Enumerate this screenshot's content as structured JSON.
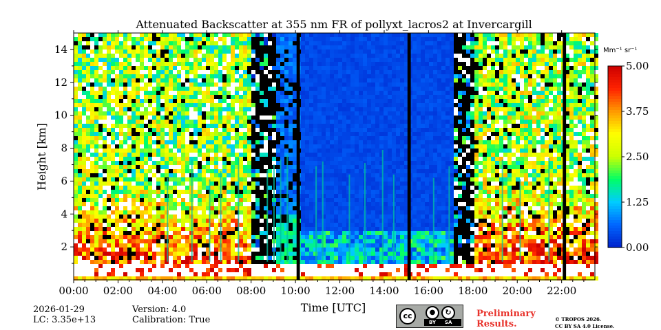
{
  "chart_data": {
    "type": "heatmap",
    "title": "Attenuated Backscatter at 355 nm FR of pollyxt_lacros2 at Invercargill",
    "xlabel": "Time [UTC]",
    "ylabel": "Height [km]",
    "xlim": [
      0,
      23.5
    ],
    "ylim": [
      0,
      15
    ],
    "x_ticks": [
      {
        "value": 0,
        "label": "00:00"
      },
      {
        "value": 2,
        "label": "02:00"
      },
      {
        "value": 4,
        "label": "04:00"
      },
      {
        "value": 6,
        "label": "06:00"
      },
      {
        "value": 8,
        "label": "08:00"
      },
      {
        "value": 10,
        "label": "10:00"
      },
      {
        "value": 12,
        "label": "12:00"
      },
      {
        "value": 14,
        "label": "14:00"
      },
      {
        "value": 16,
        "label": "16:00"
      },
      {
        "value": 18,
        "label": "18:00"
      },
      {
        "value": 20,
        "label": "20:00"
      },
      {
        "value": 22,
        "label": "22:00"
      }
    ],
    "y_ticks": [
      {
        "value": 2,
        "label": "2"
      },
      {
        "value": 4,
        "label": "4"
      },
      {
        "value": 6,
        "label": "6"
      },
      {
        "value": 8,
        "label": "8"
      },
      {
        "value": 10,
        "label": "10"
      },
      {
        "value": 12,
        "label": "12"
      },
      {
        "value": 14,
        "label": "14"
      }
    ],
    "colorbar": {
      "unit": "Mm⁻¹ sr⁻¹",
      "range": [
        0.0,
        5.0
      ],
      "ticks": [
        {
          "value": 0.0,
          "label": "0.00"
        },
        {
          "value": 1.25,
          "label": "1.25"
        },
        {
          "value": 2.5,
          "label": "2.50"
        },
        {
          "value": 3.75,
          "label": "3.75"
        },
        {
          "value": 5.0,
          "label": "5.00"
        }
      ],
      "colormap": [
        "#0022cc",
        "#0066ff",
        "#00ccff",
        "#00ff66",
        "#ccff00",
        "#ffff00",
        "#ff9900",
        "#ff2200",
        "#cc0000"
      ]
    },
    "regimes": [
      {
        "start": 0.0,
        "end": 8.0,
        "kind": "noisy",
        "level": 0.5
      },
      {
        "start": 8.0,
        "end": 9.0,
        "kind": "dark",
        "level": 0.3
      },
      {
        "start": 9.0,
        "end": 10.2,
        "kind": "blue_streaks",
        "level": 0.4
      },
      {
        "start": 10.2,
        "end": 15.2,
        "kind": "blue",
        "level": 0.35
      },
      {
        "start": 15.2,
        "end": 17.0,
        "kind": "blue",
        "level": 0.3
      },
      {
        "start": 17.0,
        "end": 18.0,
        "kind": "dark",
        "level": 0.3
      },
      {
        "start": 18.0,
        "end": 23.5,
        "kind": "noisy",
        "level": 0.55
      }
    ],
    "gaps": [
      {
        "start": 10.05,
        "end": 10.2
      },
      {
        "start": 15.05,
        "end": 15.2
      },
      {
        "start": 22.05,
        "end": 22.2
      }
    ],
    "boundary_layer_top_km": 1.1
  },
  "footer": {
    "date": "2026-01-29",
    "lc": "LC: 3.35e+13",
    "version": "Version: 4.0",
    "calibration": "Calibration: True",
    "preliminary_line1": "Preliminary",
    "preliminary_line2": "Results.",
    "copyright_line1": "© TROPOS 2026.",
    "copyright_line2": "CC BY SA 4.0 License.",
    "cc_by": "BY",
    "cc_sa": "SA",
    "cc_logo": "cc"
  }
}
